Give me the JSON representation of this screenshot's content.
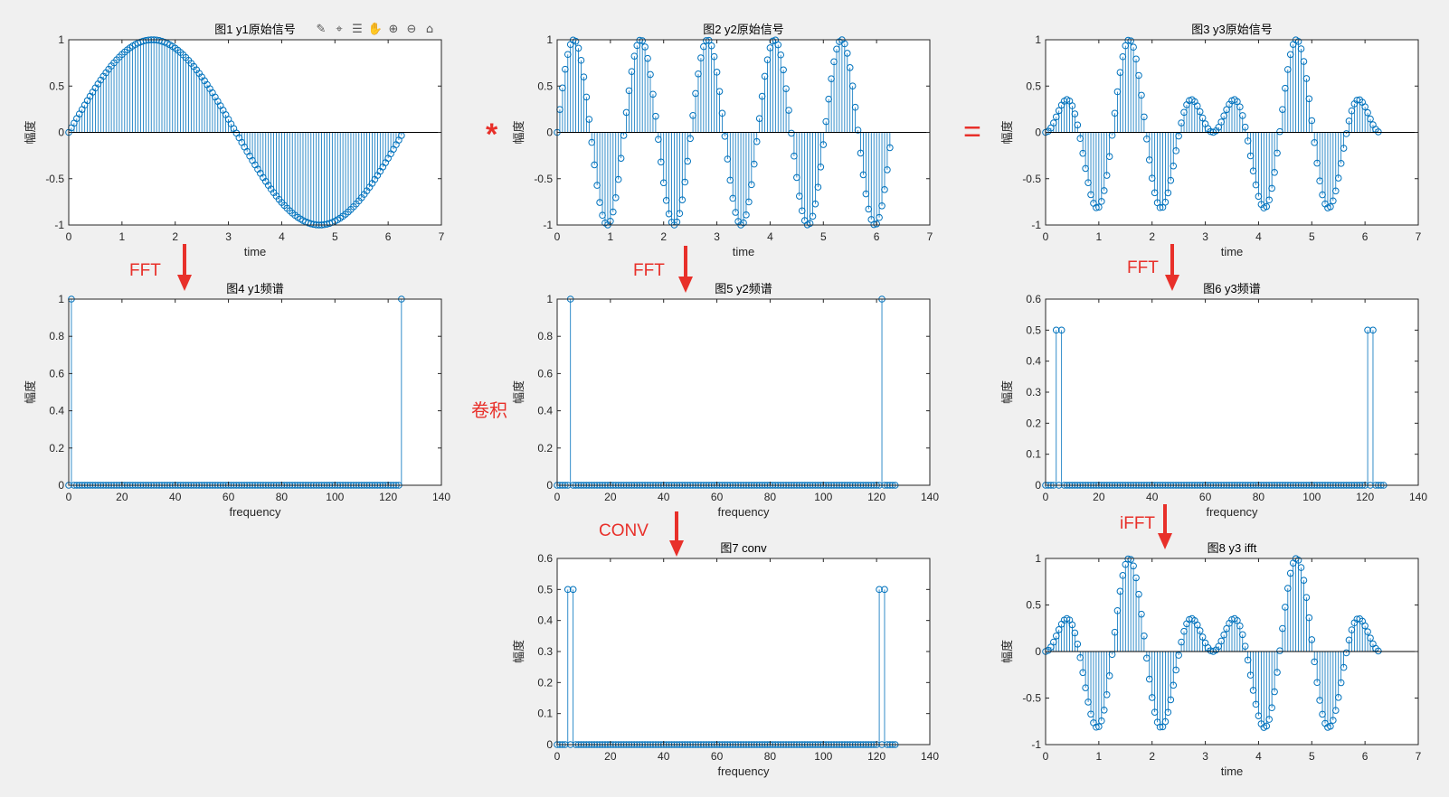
{
  "colors": {
    "stem": "#0072BD",
    "annotation": "#E8302A",
    "axis": "#262626",
    "background": "#f0f0f0"
  },
  "annotations": {
    "fft_1": "FFT",
    "fft_2": "FFT",
    "fft_3": "FFT",
    "conv": "CONV",
    "ifft": "iFFT",
    "multiply": "*",
    "equals": "=",
    "convolution": "卷积"
  },
  "toolbar": {
    "icons": [
      "brush-icon",
      "data-tip-icon",
      "legend-icon",
      "pan-icon",
      "zoom-in-icon",
      "zoom-out-icon",
      "home-icon"
    ]
  },
  "chart_data": [
    {
      "id": "p1",
      "type": "stem",
      "title": "图1 y1原始信号",
      "xlabel": "time",
      "ylabel": "幅度",
      "xlim": [
        0,
        7
      ],
      "ylim": [
        -1,
        1
      ],
      "xticks": [
        "0",
        "1",
        "2",
        "3",
        "4",
        "5",
        "6",
        "7"
      ],
      "yticks": [
        "-1",
        "-0.5",
        "0",
        "0.5",
        "1"
      ],
      "series": [
        {
          "x_start": 0,
          "x_step": 0.05,
          "points": 126,
          "formula": "sin(t)"
        }
      ]
    },
    {
      "id": "p2",
      "type": "stem",
      "title": "图2 y2原始信号",
      "xlabel": "time",
      "ylabel": "幅度",
      "xlim": [
        0,
        7
      ],
      "ylim": [
        -1,
        1
      ],
      "xticks": [
        "0",
        "1",
        "2",
        "3",
        "4",
        "5",
        "6",
        "7"
      ],
      "yticks": [
        "-1",
        "-0.5",
        "0",
        "0.5",
        "1"
      ],
      "series": [
        {
          "x_start": 0,
          "x_step": 0.05,
          "points": 126,
          "formula": "sin(5t)"
        }
      ]
    },
    {
      "id": "p3",
      "type": "stem",
      "title": "图3 y3原始信号",
      "xlabel": "time",
      "ylabel": "幅度",
      "xlim": [
        0,
        7
      ],
      "ylim": [
        -1,
        1
      ],
      "xticks": [
        "0",
        "1",
        "2",
        "3",
        "4",
        "5",
        "6",
        "7"
      ],
      "yticks": [
        "-1",
        "-0.5",
        "0",
        "0.5",
        "1"
      ],
      "series": [
        {
          "x_start": 0,
          "x_step": 0.05,
          "points": 126,
          "formula": "sin(t)*sin(5t)"
        }
      ]
    },
    {
      "id": "p4",
      "type": "stem",
      "title": "图4 y1频谱",
      "xlabel": "frequency",
      "ylabel": "幅度",
      "xlim": [
        0,
        140
      ],
      "ylim": [
        0,
        1
      ],
      "xticks": [
        "0",
        "20",
        "40",
        "60",
        "80",
        "100",
        "120",
        "140"
      ],
      "yticks": [
        "0",
        "0.2",
        "0.4",
        "0.6",
        "0.8",
        "1"
      ],
      "series": [
        {
          "x_start": 0,
          "points": 126,
          "peaks": [
            [
              1,
              1
            ],
            [
              125,
              1
            ]
          ]
        }
      ]
    },
    {
      "id": "p5",
      "type": "stem",
      "title": "图5 y2频谱",
      "xlabel": "frequency",
      "ylabel": "幅度",
      "xlim": [
        0,
        140
      ],
      "ylim": [
        0,
        1
      ],
      "xticks": [
        "0",
        "20",
        "40",
        "60",
        "80",
        "100",
        "120",
        "140"
      ],
      "yticks": [
        "0",
        "0.2",
        "0.4",
        "0.6",
        "0.8",
        "1"
      ],
      "series": [
        {
          "x_start": 0,
          "points": 128,
          "peaks": [
            [
              5,
              1
            ],
            [
              122,
              1
            ]
          ]
        }
      ]
    },
    {
      "id": "p6",
      "type": "stem",
      "title": "图6 y3频谱",
      "xlabel": "frequency",
      "ylabel": "幅度",
      "xlim": [
        0,
        140
      ],
      "ylim": [
        0,
        0.6
      ],
      "xticks": [
        "0",
        "20",
        "40",
        "60",
        "80",
        "100",
        "120",
        "140"
      ],
      "yticks": [
        "0",
        "0.1",
        "0.2",
        "0.3",
        "0.4",
        "0.5",
        "0.6"
      ],
      "series": [
        {
          "x_start": 0,
          "points": 128,
          "peaks": [
            [
              4,
              0.5
            ],
            [
              6,
              0.5
            ],
            [
              121,
              0.5
            ],
            [
              123,
              0.5
            ]
          ]
        }
      ]
    },
    {
      "id": "p7",
      "type": "stem",
      "title": "图7 conv",
      "xlabel": "frequency",
      "ylabel": "幅度",
      "xlim": [
        0,
        140
      ],
      "ylim": [
        0,
        0.6
      ],
      "xticks": [
        "0",
        "20",
        "40",
        "60",
        "80",
        "100",
        "120",
        "140"
      ],
      "yticks": [
        "0",
        "0.1",
        "0.2",
        "0.3",
        "0.4",
        "0.5",
        "0.6"
      ],
      "series": [
        {
          "x_start": 0,
          "points": 128,
          "peaks": [
            [
              4,
              0.5
            ],
            [
              6,
              0.5
            ],
            [
              121,
              0.5
            ],
            [
              123,
              0.5
            ]
          ]
        }
      ]
    },
    {
      "id": "p8",
      "type": "stem",
      "title": "图8 y3 ifft",
      "xlabel": "time",
      "ylabel": "幅度",
      "xlim": [
        0,
        7
      ],
      "ylim": [
        -1,
        1
      ],
      "xticks": [
        "0",
        "1",
        "2",
        "3",
        "4",
        "5",
        "6",
        "7"
      ],
      "yticks": [
        "-1",
        "-0.5",
        "0",
        "0.5",
        "1"
      ],
      "series": [
        {
          "x_start": 0,
          "x_step": 0.05,
          "points": 126,
          "formula": "sin(t)*sin(5t)"
        }
      ]
    }
  ]
}
